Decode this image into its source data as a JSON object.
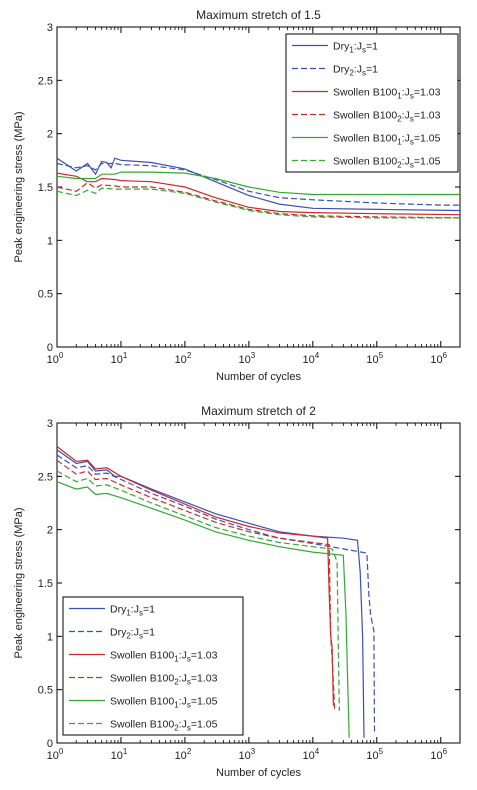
{
  "chart_data": [
    {
      "type": "line",
      "title": "Maximum stretch of 1.5",
      "xlabel": "Number of cycles",
      "ylabel": "Peak engineering stress (MPa)",
      "x_scale": "log",
      "xlim": [
        1,
        2000000
      ],
      "ylim": [
        0,
        3
      ],
      "x_ticks": [
        {
          "value": 1,
          "base": "10",
          "exp": "0"
        },
        {
          "value": 10,
          "base": "10",
          "exp": "1"
        },
        {
          "value": 100,
          "base": "10",
          "exp": "2"
        },
        {
          "value": 1000,
          "base": "10",
          "exp": "3"
        },
        {
          "value": 10000,
          "base": "10",
          "exp": "4"
        },
        {
          "value": 100000,
          "base": "10",
          "exp": "5"
        },
        {
          "value": 1000000,
          "base": "10",
          "exp": "6"
        }
      ],
      "y_ticks": [
        "0",
        "0.5",
        "1",
        "1.5",
        "2",
        "2.5",
        "3"
      ],
      "legend_position": "top-right",
      "series": [
        {
          "name": "Dry1:Js=1",
          "label": {
            "pre": "Dry",
            "sub1": "1",
            "mid": ":J",
            "sub2": "s",
            "post": "=1"
          },
          "color": "#3b4fb8",
          "dash": "solid",
          "points": [
            [
              1,
              1.77
            ],
            [
              2,
              1.65
            ],
            [
              3,
              1.72
            ],
            [
              4,
              1.62
            ],
            [
              5,
              1.74
            ],
            [
              6,
              1.73
            ],
            [
              7,
              1.68
            ],
            [
              8,
              1.77
            ],
            [
              10,
              1.75
            ],
            [
              30,
              1.73
            ],
            [
              100,
              1.67
            ],
            [
              300,
              1.55
            ],
            [
              1000,
              1.42
            ],
            [
              3000,
              1.34
            ],
            [
              10000,
              1.3
            ],
            [
              100000,
              1.29
            ],
            [
              2000000,
              1.28
            ]
          ]
        },
        {
          "name": "Dry2:Js=1",
          "label": {
            "pre": "Dry",
            "sub1": "2",
            "mid": ":J",
            "sub2": "s",
            "post": "=1"
          },
          "color": "#3b4fb8",
          "dash": "dashed",
          "points": [
            [
              1,
              1.72
            ],
            [
              2,
              1.68
            ],
            [
              3,
              1.7
            ],
            [
              4,
              1.66
            ],
            [
              5,
              1.72
            ],
            [
              8,
              1.72
            ],
            [
              10,
              1.71
            ],
            [
              30,
              1.7
            ],
            [
              100,
              1.66
            ],
            [
              300,
              1.57
            ],
            [
              1000,
              1.46
            ],
            [
              3000,
              1.4
            ],
            [
              10000,
              1.38
            ],
            [
              100000,
              1.35
            ],
            [
              1000000,
              1.33
            ],
            [
              2000000,
              1.33
            ]
          ]
        },
        {
          "name": "Swollen B1001:Js=1.03",
          "label": {
            "pre": "Swollen B100",
            "sub1": "1",
            "mid": ":J",
            "sub2": "s",
            "post": "=1.03"
          },
          "color": "#cc2b2b",
          "dash": "solid",
          "points": [
            [
              1,
              1.63
            ],
            [
              2,
              1.6
            ],
            [
              3,
              1.55
            ],
            [
              4,
              1.55
            ],
            [
              5,
              1.58
            ],
            [
              8,
              1.57
            ],
            [
              10,
              1.56
            ],
            [
              30,
              1.55
            ],
            [
              100,
              1.5
            ],
            [
              300,
              1.4
            ],
            [
              1000,
              1.31
            ],
            [
              3000,
              1.27
            ],
            [
              10000,
              1.26
            ],
            [
              100000,
              1.25
            ],
            [
              2000000,
              1.24
            ]
          ]
        },
        {
          "name": "Swollen B1002:Js=1.03",
          "label": {
            "pre": "Swollen B100",
            "sub1": "2",
            "mid": ":J",
            "sub2": "s",
            "post": "=1.03"
          },
          "color": "#cc2b2b",
          "dash": "dashed",
          "points": [
            [
              1,
              1.5
            ],
            [
              2,
              1.46
            ],
            [
              3,
              1.54
            ],
            [
              4,
              1.49
            ],
            [
              5,
              1.52
            ],
            [
              8,
              1.51
            ],
            [
              10,
              1.5
            ],
            [
              30,
              1.5
            ],
            [
              100,
              1.45
            ],
            [
              300,
              1.37
            ],
            [
              1000,
              1.29
            ],
            [
              3000,
              1.25
            ],
            [
              10000,
              1.23
            ],
            [
              100000,
              1.22
            ],
            [
              2000000,
              1.21
            ]
          ]
        },
        {
          "name": "Swollen B1001:Js=1.05",
          "label": {
            "pre": "Swollen B100",
            "sub1": "1",
            "mid": ":J",
            "sub2": "s",
            "post": "=1.05"
          },
          "color": "#33aa33",
          "dash": "solid",
          "points": [
            [
              1,
              1.6
            ],
            [
              2,
              1.58
            ],
            [
              3,
              1.58
            ],
            [
              4,
              1.58
            ],
            [
              5,
              1.62
            ],
            [
              8,
              1.62
            ],
            [
              10,
              1.64
            ],
            [
              30,
              1.64
            ],
            [
              100,
              1.63
            ],
            [
              300,
              1.58
            ],
            [
              1000,
              1.5
            ],
            [
              3000,
              1.45
            ],
            [
              10000,
              1.43
            ],
            [
              100000,
              1.43
            ],
            [
              2000000,
              1.43
            ]
          ]
        },
        {
          "name": "Swollen B1002:Js=1.05",
          "label": {
            "pre": "Swollen B100",
            "sub1": "2",
            "mid": ":J",
            "sub2": "s",
            "post": "=1.05"
          },
          "color": "#33aa33",
          "dash": "dashed",
          "points": [
            [
              1,
              1.46
            ],
            [
              2,
              1.42
            ],
            [
              3,
              1.47
            ],
            [
              4,
              1.44
            ],
            [
              5,
              1.49
            ],
            [
              8,
              1.48
            ],
            [
              10,
              1.48
            ],
            [
              30,
              1.48
            ],
            [
              100,
              1.44
            ],
            [
              300,
              1.36
            ],
            [
              1000,
              1.28
            ],
            [
              3000,
              1.24
            ],
            [
              10000,
              1.22
            ],
            [
              100000,
              1.21
            ],
            [
              2000000,
              1.21
            ]
          ]
        }
      ]
    },
    {
      "type": "line",
      "title": "Maximum stretch of 2",
      "xlabel": "Number of cycles",
      "ylabel": "Peak engineering stress (MPa)",
      "x_scale": "log",
      "xlim": [
        1,
        2000000
      ],
      "ylim": [
        0,
        3
      ],
      "x_ticks": [
        {
          "value": 1,
          "base": "10",
          "exp": "0"
        },
        {
          "value": 10,
          "base": "10",
          "exp": "1"
        },
        {
          "value": 100,
          "base": "10",
          "exp": "2"
        },
        {
          "value": 1000,
          "base": "10",
          "exp": "3"
        },
        {
          "value": 10000,
          "base": "10",
          "exp": "4"
        },
        {
          "value": 100000,
          "base": "10",
          "exp": "5"
        },
        {
          "value": 1000000,
          "base": "10",
          "exp": "6"
        }
      ],
      "y_ticks": [
        "0",
        "0.5",
        "1",
        "1.5",
        "2",
        "2.5",
        "3"
      ],
      "legend_position": "bottom-left",
      "series": [
        {
          "name": "Dry1:Js=1",
          "label": {
            "pre": "Dry",
            "sub1": "1",
            "mid": ":J",
            "sub2": "s",
            "post": "=1"
          },
          "color": "#3b4fb8",
          "dash": "solid",
          "points": [
            [
              1,
              2.75
            ],
            [
              2,
              2.62
            ],
            [
              3,
              2.64
            ],
            [
              4,
              2.55
            ],
            [
              6,
              2.56
            ],
            [
              8,
              2.5
            ],
            [
              10,
              2.5
            ],
            [
              30,
              2.38
            ],
            [
              100,
              2.26
            ],
            [
              300,
              2.15
            ],
            [
              1000,
              2.06
            ],
            [
              3000,
              1.98
            ],
            [
              10000,
              1.94
            ],
            [
              30000,
              1.92
            ],
            [
              50000,
              1.9
            ],
            [
              55000,
              1.6
            ],
            [
              60000,
              1.0
            ],
            [
              63000,
              0.05
            ]
          ]
        },
        {
          "name": "Dry2:Js=1",
          "label": {
            "pre": "Dry",
            "sub1": "2",
            "mid": ":J",
            "sub2": "s",
            "post": "=1"
          },
          "color": "#3b4fb8",
          "dash": "dashed",
          "points": [
            [
              1,
              2.7
            ],
            [
              2,
              2.58
            ],
            [
              3,
              2.6
            ],
            [
              4,
              2.52
            ],
            [
              6,
              2.53
            ],
            [
              10,
              2.47
            ],
            [
              30,
              2.34
            ],
            [
              100,
              2.22
            ],
            [
              300,
              2.1
            ],
            [
              1000,
              2.0
            ],
            [
              3000,
              1.92
            ],
            [
              10000,
              1.87
            ],
            [
              30000,
              1.82
            ],
            [
              70000,
              1.78
            ],
            [
              75000,
              1.4
            ],
            [
              80000,
              1.2
            ],
            [
              90000,
              1.05
            ],
            [
              92000,
              0.1
            ]
          ]
        },
        {
          "name": "Swollen B1001:Js=1.03",
          "label": {
            "pre": "Swollen B100",
            "sub1": "1",
            "mid": ":J",
            "sub2": "s",
            "post": "=1.03"
          },
          "color": "#cc2b2b",
          "dash": "solid",
          "points": [
            [
              1,
              2.78
            ],
            [
              2,
              2.64
            ],
            [
              3,
              2.65
            ],
            [
              4,
              2.57
            ],
            [
              6,
              2.58
            ],
            [
              10,
              2.5
            ],
            [
              30,
              2.37
            ],
            [
              100,
              2.24
            ],
            [
              300,
              2.12
            ],
            [
              1000,
              2.03
            ],
            [
              3000,
              1.97
            ],
            [
              10000,
              1.94
            ],
            [
              17000,
              1.92
            ],
            [
              18000,
              1.4
            ],
            [
              19000,
              1.0
            ],
            [
              20000,
              0.9
            ],
            [
              21000,
              0.35
            ]
          ]
        },
        {
          "name": "Swollen B1002:Js=1.03",
          "label": {
            "pre": "Swollen B100",
            "sub1": "2",
            "mid": ":J",
            "sub2": "s",
            "post": "=1.03"
          },
          "color": "#cc2b2b",
          "dash": "dashed",
          "points": [
            [
              1,
              2.65
            ],
            [
              2,
              2.52
            ],
            [
              3,
              2.55
            ],
            [
              4,
              2.47
            ],
            [
              6,
              2.48
            ],
            [
              10,
              2.42
            ],
            [
              30,
              2.3
            ],
            [
              100,
              2.18
            ],
            [
              300,
              2.07
            ],
            [
              1000,
              1.98
            ],
            [
              3000,
              1.92
            ],
            [
              10000,
              1.88
            ],
            [
              18000,
              1.86
            ],
            [
              19000,
              1.0
            ],
            [
              20000,
              0.8
            ],
            [
              22000,
              0.3
            ]
          ]
        },
        {
          "name": "Swollen B1001:Js=1.05",
          "label": {
            "pre": "Swollen B100",
            "sub1": "1",
            "mid": ":J",
            "sub2": "s",
            "post": "=1.05"
          },
          "color": "#33aa33",
          "dash": "solid",
          "points": [
            [
              1,
              2.45
            ],
            [
              2,
              2.38
            ],
            [
              3,
              2.4
            ],
            [
              4,
              2.33
            ],
            [
              6,
              2.34
            ],
            [
              10,
              2.3
            ],
            [
              30,
              2.2
            ],
            [
              100,
              2.09
            ],
            [
              300,
              1.98
            ],
            [
              1000,
              1.9
            ],
            [
              3000,
              1.84
            ],
            [
              10000,
              1.79
            ],
            [
              30000,
              1.76
            ],
            [
              33000,
              1.2
            ],
            [
              35000,
              0.6
            ],
            [
              37000,
              0.05
            ]
          ]
        },
        {
          "name": "Swollen B1002:Js=1.05",
          "label": {
            "pre": "Swollen B100",
            "sub1": "2",
            "mid": ":J",
            "sub2": "s",
            "post": "=1.05"
          },
          "color": "#33aa33",
          "dash": "dashed",
          "points": [
            [
              1,
              2.55
            ],
            [
              2,
              2.45
            ],
            [
              3,
              2.48
            ],
            [
              4,
              2.41
            ],
            [
              6,
              2.42
            ],
            [
              10,
              2.37
            ],
            [
              30,
              2.25
            ],
            [
              100,
              2.13
            ],
            [
              300,
              2.02
            ],
            [
              1000,
              1.94
            ],
            [
              3000,
              1.88
            ],
            [
              10000,
              1.84
            ],
            [
              20000,
              1.82
            ],
            [
              24000,
              1.7
            ],
            [
              25000,
              0.9
            ],
            [
              26000,
              0.3
            ]
          ]
        }
      ]
    }
  ]
}
